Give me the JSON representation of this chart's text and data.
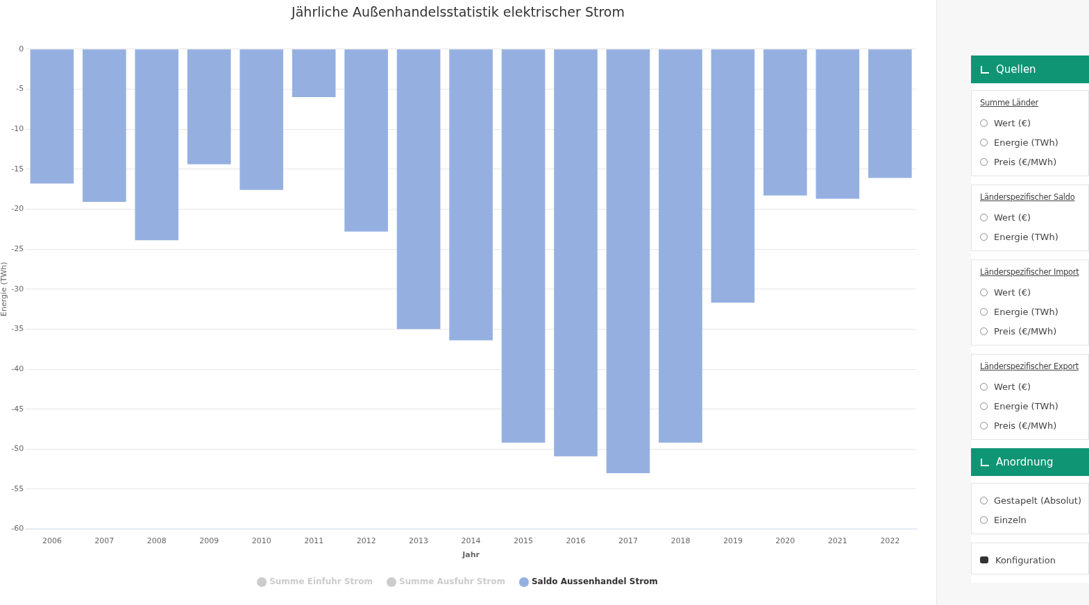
{
  "chart_data": [
    {
      "type": "bar",
      "title": "Jährliche Außenhandelsstatistik elektrischer Strom",
      "xlabel": "Jahr",
      "ylabel": "Energie (TWh)",
      "categories": [
        "2006",
        "2007",
        "2008",
        "2009",
        "2010",
        "2011",
        "2012",
        "2013",
        "2014",
        "2015",
        "2016",
        "2017",
        "2018",
        "2019",
        "2020",
        "2021",
        "2022"
      ],
      "series": [
        {
          "name": "Summe Einfuhr Strom",
          "color": "#cccccc",
          "values": [
            null,
            null,
            null,
            null,
            null,
            null,
            null,
            null,
            null,
            null,
            null,
            null,
            null,
            null,
            null,
            null,
            null
          ]
        },
        {
          "name": "Summe Ausfuhr Strom",
          "color": "#cccccc",
          "values": [
            null,
            null,
            null,
            null,
            null,
            null,
            null,
            null,
            null,
            null,
            null,
            null,
            null,
            null,
            null,
            null,
            null
          ]
        },
        {
          "name": "Saldo Aussenhandel Strom",
          "color": "#95b0e0",
          "values": [
            -16.8,
            -19.1,
            -23.9,
            -14.4,
            -17.6,
            -6.0,
            -22.8,
            -35.0,
            -36.4,
            -49.2,
            -50.9,
            -53.0,
            -49.2,
            -31.7,
            -18.3,
            -18.7,
            -16.1
          ]
        }
      ],
      "ylim": [
        -60,
        0
      ],
      "yticks": [
        0,
        -5,
        -10,
        -15,
        -20,
        -25,
        -30,
        -35,
        -40,
        -45,
        -50,
        -55,
        -60
      ],
      "grid": "y",
      "legend": "bottom"
    },
    {
      "type": "other",
      "title": "Quellen"
    },
    {
      "type": "other",
      "subtitle": "Summe Länder",
      "annotations": [
        "Wert (€)",
        "Energie (TWh)",
        "Preis (€/MWh)"
      ]
    },
    {
      "type": "other",
      "subtitle": "Länderspezifischer Saldo",
      "annotations": [
        "Wert (€)",
        "Energie (TWh)"
      ]
    },
    {
      "type": "other",
      "subtitle": "Länderspezifischer Import",
      "annotations": [
        "Wert (€)",
        "Energie (TWh)",
        "Preis (€/MWh)"
      ]
    },
    {
      "type": "other",
      "subtitle": "Länderspezifischer Export",
      "annotations": [
        "Wert (€)",
        "Energie (TWh)",
        "Preis (€/MWh)"
      ]
    },
    {
      "type": "other",
      "title": "Anordnung"
    },
    {
      "type": "other",
      "annotations": [
        "Gestapelt (Absolut)",
        "Einzeln"
      ]
    },
    {
      "type": "other",
      "annotations": [
        "Konfiguration"
      ]
    }
  ]
}
